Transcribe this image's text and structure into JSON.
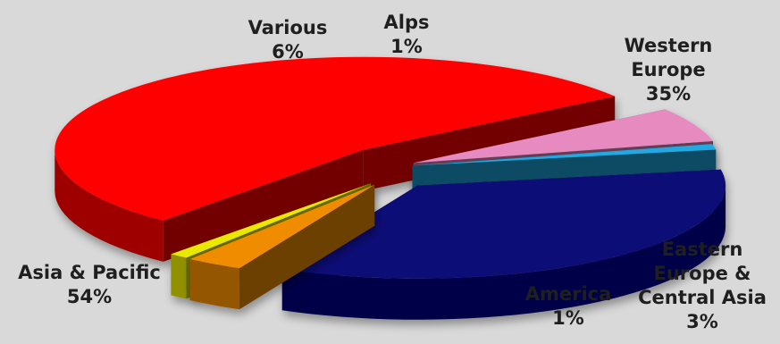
{
  "chart_data": {
    "type": "pie",
    "title": "",
    "slices": [
      {
        "label_lines": [
          "Western",
          "Europe"
        ],
        "value": 35,
        "percent_label": "35%",
        "color": "#0a0a78"
      },
      {
        "label_lines": [
          "Eastern",
          "Europe &",
          "Central Asia"
        ],
        "value": 3,
        "percent_label": "3%",
        "color": "#f08c00"
      },
      {
        "label_lines": [
          "America"
        ],
        "value": 1,
        "percent_label": "1%",
        "color": "#e8e800"
      },
      {
        "label_lines": [
          "Asia & Pacific"
        ],
        "value": 54,
        "percent_label": "54%",
        "color": "#ff0000"
      },
      {
        "label_lines": [
          "Various"
        ],
        "value": 6,
        "percent_label": "6%",
        "color": "#e68ac0"
      },
      {
        "label_lines": [
          "Alps"
        ],
        "value": 1,
        "percent_label": "1%",
        "color": "#23a9e1"
      }
    ],
    "legend": "none",
    "style": "3d-exploded-pie"
  }
}
